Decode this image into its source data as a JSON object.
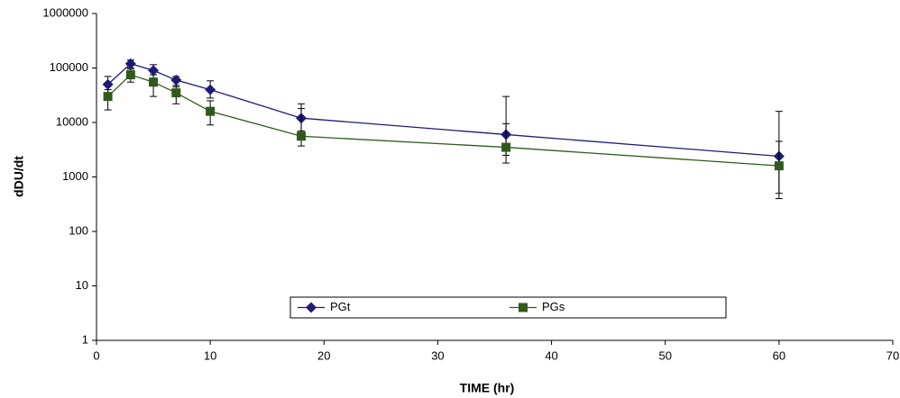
{
  "chart_data": {
    "type": "line",
    "x_label": "TIME (hr)",
    "y_label": "dDU/dt",
    "xlim": [
      0,
      70
    ],
    "xticks": [
      0,
      10,
      20,
      30,
      40,
      50,
      60,
      70
    ],
    "ylim": [
      1,
      1000000
    ],
    "yticks": [
      1,
      10,
      100,
      1000,
      10000,
      100000,
      1000000
    ],
    "log_y": true,
    "legend": "bottom",
    "x": [
      1,
      3,
      5,
      7,
      10,
      18,
      36,
      60
    ],
    "series": [
      {
        "name": "PGt",
        "color": "#1c1c78",
        "marker": "diamond",
        "values": [
          50000,
          120000,
          90000,
          60000,
          40000,
          12000,
          6000,
          2400
        ],
        "err_low": [
          35000,
          100000,
          65000,
          45000,
          28000,
          7000,
          2500,
          500
        ],
        "err_high": [
          70000,
          140000,
          115000,
          70000,
          58000,
          22000,
          30000,
          16000
        ]
      },
      {
        "name": "PGs",
        "color": "#2f5a1c",
        "marker": "square",
        "values": [
          30000,
          75000,
          55000,
          35000,
          16000,
          5600,
          3500,
          1600
        ],
        "err_low": [
          17000,
          55000,
          30000,
          22000,
          9000,
          3700,
          1800,
          400
        ],
        "err_high": [
          40000,
          95000,
          75000,
          48000,
          25000,
          18000,
          9500,
          4500
        ]
      }
    ]
  }
}
